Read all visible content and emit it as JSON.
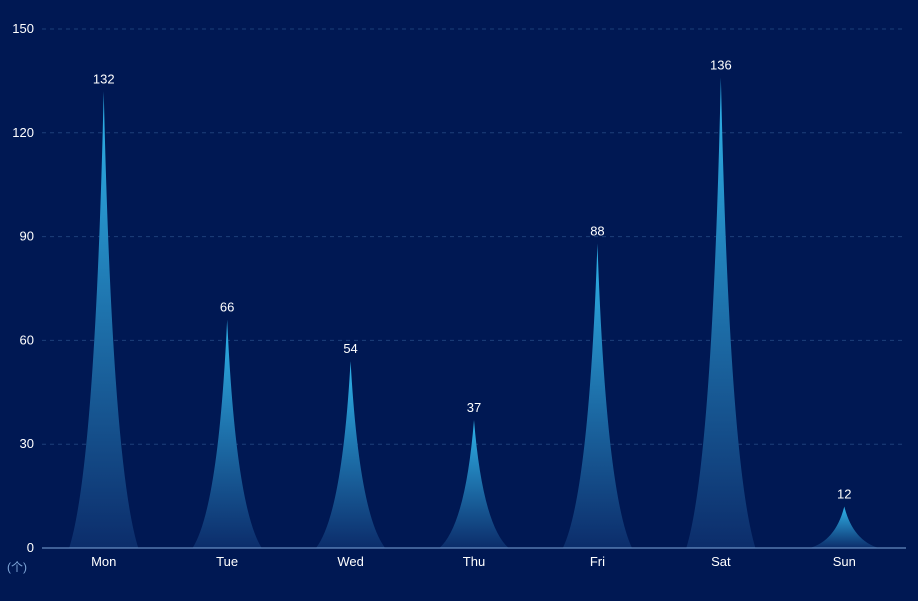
{
  "chart_data": {
    "type": "bar",
    "categories": [
      "Mon",
      "Tue",
      "Wed",
      "Thu",
      "Fri",
      "Sat",
      "Sun"
    ],
    "values": [
      132,
      66,
      54,
      37,
      88,
      136,
      12
    ],
    "ylim": [
      0,
      150
    ],
    "yticks": [
      0,
      30,
      60,
      90,
      120,
      150
    ],
    "ylabel": "(个)",
    "grid": true,
    "legend": "none",
    "colors": {
      "background": "#001853",
      "bar_top": "#2fb4ea",
      "bar_bottom": "#0c2d6b",
      "axis": "#7ea6d8",
      "grid": "#1d3f7a",
      "tick_text": "#ffffff",
      "label_text": "#ffffff",
      "unit_text": "#7ea6d8"
    }
  }
}
